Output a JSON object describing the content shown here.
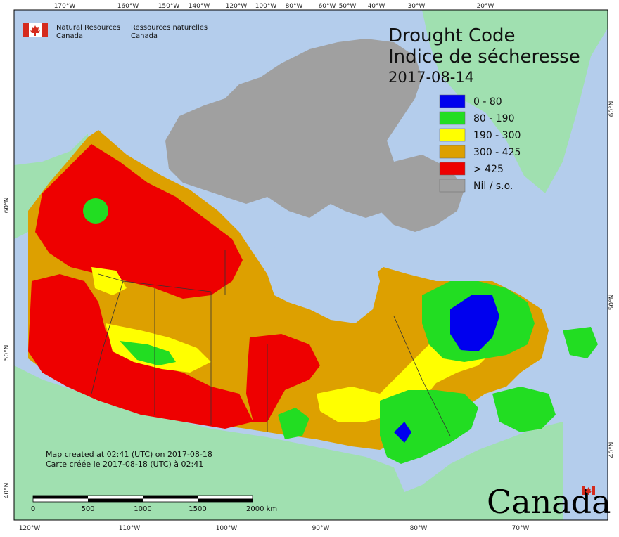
{
  "header": {
    "org_en_line1": "Natural Resources",
    "org_en_line2": "Canada",
    "org_fr_line1": "Ressources naturelles",
    "org_fr_line2": "Canada"
  },
  "title": {
    "line_en": "Drought Code",
    "line_fr": "Indice de sécheresse",
    "date": "2017-08-14"
  },
  "legend": [
    {
      "label": "0 - 80",
      "color": "#0000ee"
    },
    {
      "label": "80 - 190",
      "color": "#22dd22"
    },
    {
      "label": "190 - 300",
      "color": "#ffff00"
    },
    {
      "label": "300 - 425",
      "color": "#dda000"
    },
    {
      "label": "> 425",
      "color": "#ee0000"
    },
    {
      "label": "Nil / s.o.",
      "color": "#a0a0a0"
    }
  ],
  "credits": {
    "en": "Map created at 02:41 (UTC) on 2017-08-18",
    "fr": "Carte créée le 2017-08-18 (UTC) à 02:41"
  },
  "scale_bar": {
    "labels": [
      "0",
      "500",
      "1000",
      "1500",
      "2000  km"
    ]
  },
  "graticule": {
    "top": [
      "170°W",
      "160°W",
      "150°W",
      "140°W",
      "120°W",
      "100°W",
      "80°W",
      "60°W",
      "50°W",
      "40°W",
      "30°W",
      "20°W"
    ],
    "bottom": [
      "120°W",
      "110°W",
      "100°W",
      "90°W",
      "80°W",
      "70°W"
    ],
    "left": [
      "60°N",
      "50°N",
      "40°N"
    ],
    "right": [
      "60°N",
      "50°N",
      "40°N"
    ]
  },
  "wordmark": "Canada",
  "colors": {
    "ocean": "#b4cdec",
    "foreign_land": "#a0e0b0",
    "nil": "#a0a0a0"
  }
}
